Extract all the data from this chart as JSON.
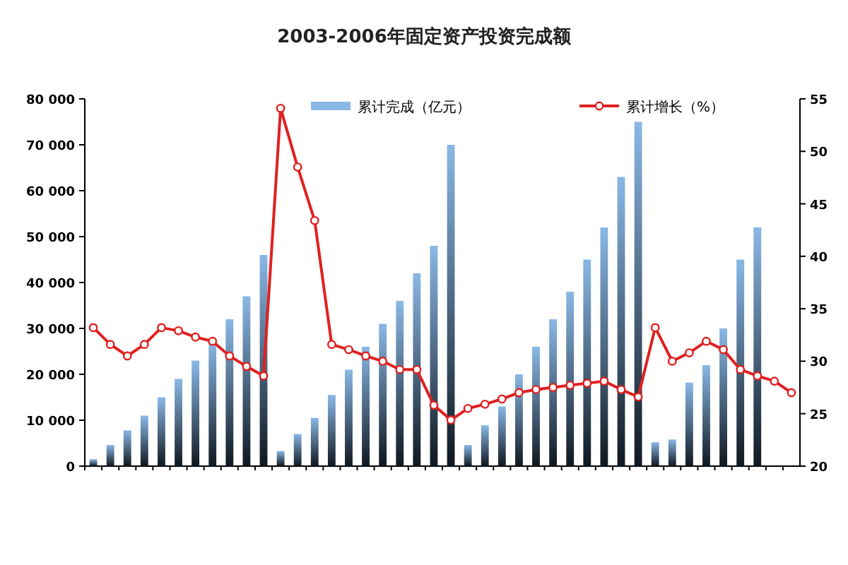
{
  "chart_data": {
    "type": "bar",
    "title": "2003-2006年固定资产投资完成额",
    "categories": [
      null,
      null,
      null,
      null,
      null,
      null,
      null,
      null,
      null,
      null,
      null,
      null,
      null,
      null,
      null,
      null,
      null,
      null,
      null,
      null,
      null,
      null,
      null,
      null,
      null,
      null,
      null,
      null,
      null,
      null,
      null,
      null,
      null,
      null,
      null,
      null,
      null,
      null,
      null,
      null,
      null,
      null
    ],
    "series": [
      {
        "name": "累计完成（亿元）",
        "color": "#8ab8e6",
        "values": [
          1500,
          4600,
          7800,
          11000,
          15000,
          19000,
          23000,
          27000,
          32000,
          37000,
          46000,
          3300,
          7000,
          10500,
          15500,
          21000,
          26000,
          31000,
          36000,
          42000,
          48000,
          70000,
          4600,
          8900,
          13000,
          20000,
          26000,
          32000,
          38000,
          45000,
          52000,
          63000,
          75000,
          5200,
          5800,
          18200,
          22000,
          30000,
          45000,
          52000,
          null,
          null
        ]
      },
      {
        "name": "累计增长（%）",
        "type": "line",
        "axis": "y2",
        "color": "#e02020",
        "marker": "circle",
        "values": [
          33.2,
          31.6,
          30.5,
          31.6,
          33.2,
          32.9,
          32.3,
          31.9,
          30.5,
          29.5,
          28.6,
          54.1,
          48.5,
          43.4,
          31.6,
          31.1,
          30.5,
          30.0,
          29.2,
          29.2,
          25.8,
          24.4,
          25.5,
          25.9,
          26.4,
          27.0,
          27.3,
          27.5,
          27.7,
          27.9,
          28.1,
          27.3,
          26.6,
          33.2,
          30.0,
          30.8,
          31.9,
          31.1,
          29.2,
          28.6,
          28.1,
          27.0
        ]
      }
    ],
    "ylim": [
      0,
      80000
    ],
    "yticks": [
      {
        "value": 0,
        "label": "0"
      },
      {
        "value": 10000,
        "label": "10 000"
      },
      {
        "value": 20000,
        "label": "20 000"
      },
      {
        "value": 30000,
        "label": "30 000"
      },
      {
        "value": 40000,
        "label": "40 000"
      },
      {
        "value": 50000,
        "label": "50 000"
      },
      {
        "value": 60000,
        "label": "60 000"
      },
      {
        "value": 70000,
        "label": "70 000"
      },
      {
        "value": 80000,
        "label": "80 000"
      }
    ],
    "y2lim": [
      20,
      55
    ],
    "y2ticks": [
      20,
      25,
      30,
      35,
      40,
      45,
      50,
      55
    ],
    "legend": "top"
  }
}
